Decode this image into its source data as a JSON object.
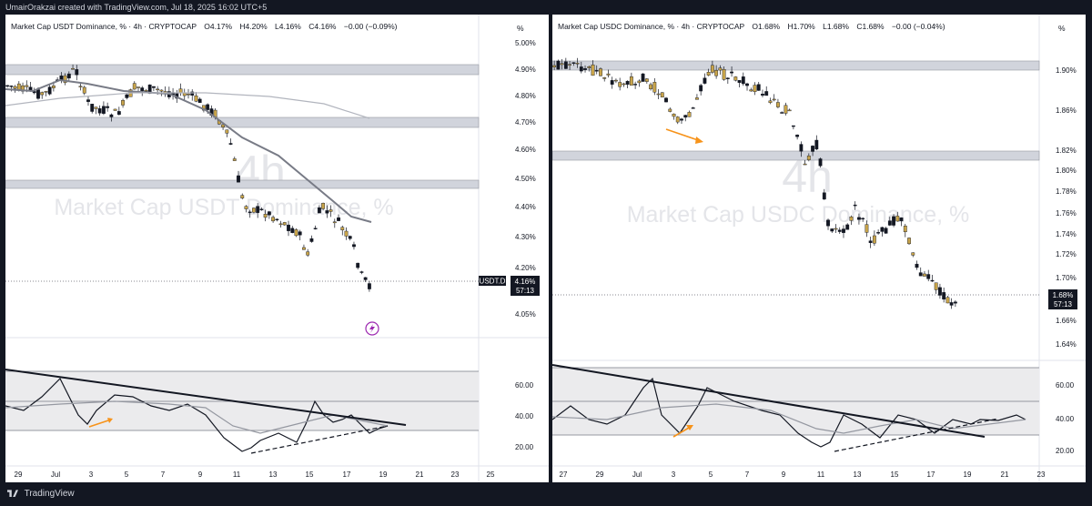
{
  "header": {
    "caption": "UmairOrakzai created with TradingView.com, Jul 18, 2025 16:02 UTC+5"
  },
  "footer": {
    "brand": "TradingView"
  },
  "colors": {
    "candle_up": "#c8a44a",
    "candle_down": "#131722",
    "zone": "#d1d4dc",
    "ma_dark": "#787b86",
    "ma_light": "#b2b5be",
    "arrow": "#f7931a",
    "price_tag": "#131722"
  },
  "left": {
    "legend": {
      "symbol": "Market Cap USDT Dominance, % · 4h · CRYPTOCAP",
      "o": "O4.17%",
      "h": "H4.20%",
      "l": "L4.16%",
      "c": "C4.16%",
      "chg": "−0.00 (−0.09%)"
    },
    "pct_label": "%",
    "watermark_tf": "4h",
    "watermark_name": "Market Cap USDT Dominance, %",
    "yticks": [
      "5.00%",
      "4.90%",
      "4.80%",
      "4.70%",
      "4.60%",
      "4.50%",
      "4.40%",
      "4.30%",
      "4.20%",
      "4.05%"
    ],
    "price_tag": "4.16%",
    "countdown": "57:13",
    "symbol_tag": "USDT.D",
    "osc_ticks": [
      "60.00",
      "40.00",
      "20.00"
    ],
    "xticks": [
      "29",
      "Jul",
      "3",
      "5",
      "7",
      "9",
      "11",
      "13",
      "15",
      "17",
      "19",
      "21",
      "23",
      "25"
    ]
  },
  "right": {
    "legend": {
      "symbol": "Market Cap USDC Dominance, % · 4h · CRYPTOCAP",
      "o": "O1.68%",
      "h": "H1.70%",
      "l": "L1.68%",
      "c": "C1.68%",
      "chg": "−0.00 (−0.04%)"
    },
    "pct_label": "%",
    "watermark_tf": "4h",
    "watermark_name": "Market Cap USDC Dominance, %",
    "yticks": [
      "1.90%",
      "1.86%",
      "1.82%",
      "1.80%",
      "1.78%",
      "1.76%",
      "1.74%",
      "1.72%",
      "1.70%",
      "1.66%",
      "1.64%"
    ],
    "price_tag": "1.68%",
    "countdown": "57:13",
    "osc_ticks": [
      "60.00",
      "40.00",
      "20.00"
    ],
    "xticks": [
      "27",
      "29",
      "Jul",
      "3",
      "5",
      "7",
      "9",
      "11",
      "13",
      "15",
      "17",
      "19",
      "21",
      "23"
    ]
  }
}
